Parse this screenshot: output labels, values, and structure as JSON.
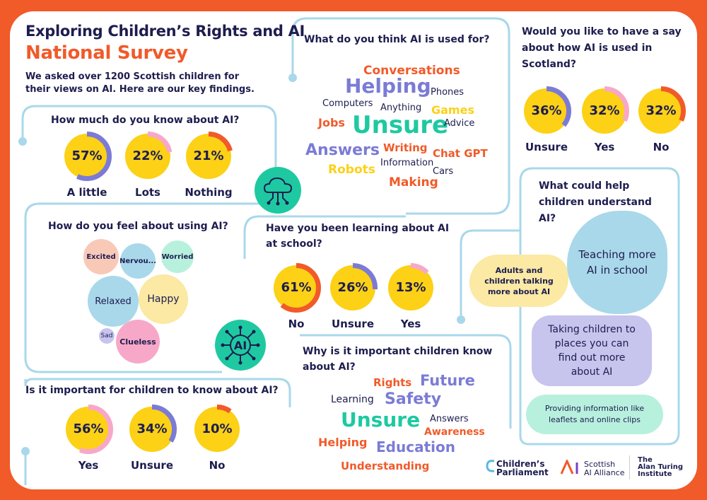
{
  "header": {
    "title": "Exploring Children’s Rights and AI",
    "subtitle": "National Survey",
    "intro": "We asked over 1200 Scottish children for their views on AI. Here are our key findings."
  },
  "colors": {
    "orange": "#f15a29",
    "yellow": "#fcd116",
    "purple": "#7b7bd6",
    "pink": "#f7a8c8",
    "blue": "#a9d8ea",
    "teal": "#1ec9a1",
    "navy": "#1d1d4f"
  },
  "know_ai": {
    "question": "How much do you know about AI?",
    "items": [
      {
        "pct": "57%",
        "value": 57,
        "label": "A little",
        "color": "#7b7bd6"
      },
      {
        "pct": "22%",
        "value": 22,
        "label": "Lots",
        "color": "#f7a8c8"
      },
      {
        "pct": "21%",
        "value": 21,
        "label": "Nothing",
        "color": "#f15a29"
      }
    ]
  },
  "used_for": {
    "question": "What do you think AI is used for?",
    "words": [
      "Conversations",
      "Helping",
      "Phones",
      "Computers",
      "Anything",
      "Games",
      "Jobs",
      "Unsure",
      "Advice",
      "Answers",
      "Writing",
      "Chat GPT",
      "Robots",
      "Information",
      "Cars",
      "Making"
    ]
  },
  "say": {
    "question": "Would you like to have a say about how AI is used in Scotland?",
    "items": [
      {
        "pct": "36%",
        "value": 36,
        "label": "Unsure",
        "color": "#7b7bd6"
      },
      {
        "pct": "32%",
        "value": 32,
        "label": "Yes",
        "color": "#f7a8c8"
      },
      {
        "pct": "32%",
        "value": 32,
        "label": "No",
        "color": "#f15a29"
      }
    ]
  },
  "feel": {
    "question": "How do you feel about using AI?",
    "bubbles": [
      "Excited",
      "Nervou...",
      "Worried",
      "Relaxed",
      "Happy",
      "Sad",
      "Clueless"
    ]
  },
  "school": {
    "question": "Have you been learning about AI at school?",
    "items": [
      {
        "pct": "61%",
        "value": 61,
        "label": "No",
        "color": "#f15a29"
      },
      {
        "pct": "26%",
        "value": 26,
        "label": "Unsure",
        "color": "#7b7bd6"
      },
      {
        "pct": "13%",
        "value": 13,
        "label": "Yes",
        "color": "#f7a8c8"
      }
    ]
  },
  "help": {
    "question": "What could help children understand AI?",
    "items": [
      "Adults and children talking more about AI",
      "Teaching more AI in school",
      "Taking children to places you can find out more about AI",
      "Providing information like leaflets and online clips"
    ]
  },
  "important": {
    "question": "Is it important for children to know about AI?",
    "items": [
      {
        "pct": "56%",
        "value": 56,
        "label": "Yes",
        "color": "#f7a8c8"
      },
      {
        "pct": "34%",
        "value": 34,
        "label": "Unsure",
        "color": "#7b7bd6"
      },
      {
        "pct": "10%",
        "value": 10,
        "label": "No",
        "color": "#f15a29"
      }
    ]
  },
  "why": {
    "question": "Why is it important children know about AI?",
    "words": [
      "Rights",
      "Future",
      "Learning",
      "Safety",
      "Unsure",
      "Answers",
      "Awareness",
      "Helping",
      "Education",
      "Understanding"
    ]
  },
  "icons": {
    "cloud": "cloud-network-icon",
    "ai": "ai-chip-icon"
  },
  "logos": {
    "cp_line1": "Children’s",
    "cp_line2": "Parliament",
    "sai_line1": "Scottish",
    "sai_line2": "AI Alliance",
    "ati_line1": "The",
    "ati_line2": "Alan Turing",
    "ati_line3": "Institute"
  }
}
